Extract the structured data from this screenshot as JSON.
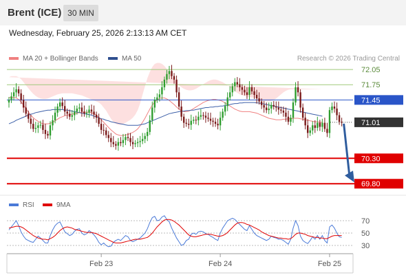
{
  "header": {
    "title": "Brent (ICE)",
    "timeframe": "30 MIN"
  },
  "datetime": "Wednesday, February 25, 2026 2:13:13 AM CET",
  "legend": {
    "ma20": "MA 20 + Bollinger Bands",
    "ma50": "MA 50",
    "credit": "Research © 2026 Trading Central"
  },
  "rsi_legend": {
    "rsi": "RSI",
    "ma9": "9MA"
  },
  "colors": {
    "candle_up": "#2e9d2e",
    "candle_down": "#7a1a1a",
    "bollinger_fill": "#fde0e0",
    "ma20": "#f08080",
    "ma50": "#3c5fa8",
    "support": "#e00000",
    "resistance": "#9fc97a",
    "pivot": "#2a55c8",
    "current": "#333333",
    "arrow": "#2f5d9e",
    "rsi": "#4a7ad8",
    "rsi_ma": "#e00000"
  },
  "chart_data": [
    {
      "type": "candlestick",
      "title": "Brent (ICE)",
      "timeframe": "30 MIN",
      "ylim": [
        69.6,
        72.2
      ],
      "x_tick_labels": [
        "Feb 23",
        "Feb 24",
        "Feb 25"
      ],
      "series": [
        {
          "name": "MA 20 + Bollinger Bands"
        },
        {
          "name": "MA 50"
        }
      ],
      "price_levels": [
        {
          "label": "72.05",
          "value": 72.05,
          "kind": "resistance"
        },
        {
          "label": "71.75",
          "value": 71.75,
          "kind": "resistance"
        },
        {
          "label": "71.45",
          "value": 71.45,
          "kind": "pivot"
        },
        {
          "label": "71.01",
          "value": 71.01,
          "kind": "current"
        },
        {
          "label": "70.30",
          "value": 70.3,
          "kind": "support"
        },
        {
          "label": "69.80",
          "value": 69.8,
          "kind": "support"
        }
      ],
      "close": [
        71.45,
        71.52,
        71.6,
        71.66,
        71.58,
        71.45,
        71.3,
        71.18,
        71.08,
        70.98,
        70.88,
        70.9,
        70.95,
        70.96,
        70.86,
        70.78,
        70.75,
        70.95,
        71.05,
        71.2,
        71.32,
        71.4,
        71.33,
        71.22,
        71.18,
        71.12,
        71.15,
        71.22,
        71.28,
        71.3,
        71.22,
        71.18,
        71.2,
        71.26,
        71.22,
        71.16,
        71.1,
        70.98,
        70.86,
        70.85,
        70.76,
        70.7,
        70.62,
        70.58,
        70.55,
        70.62,
        70.6,
        70.66,
        70.72,
        70.7,
        70.62,
        70.58,
        70.6,
        70.62,
        70.64,
        70.68,
        70.74,
        70.82,
        71.05,
        71.3,
        71.45,
        71.5,
        71.56,
        71.7,
        71.85,
        71.96,
        72.02,
        71.92,
        71.85,
        71.6,
        71.32,
        71.12,
        71.0,
        70.98,
        70.96,
        71.04,
        71.06,
        71.05,
        71.12,
        71.15,
        71.14,
        71.1,
        71.08,
        71.04,
        71.02,
        70.98,
        70.95,
        71.1,
        71.22,
        71.33,
        71.5,
        71.6,
        71.72,
        71.8,
        71.76,
        71.7,
        71.65,
        71.6,
        71.55,
        71.7,
        71.62,
        71.55,
        71.48,
        71.42,
        71.35,
        71.3,
        71.25,
        71.28,
        71.35,
        71.32,
        71.3,
        71.26,
        71.24,
        71.2,
        71.12,
        71.02,
        71.1,
        71.4,
        71.7,
        71.6,
        71.3,
        71.1,
        70.95,
        70.8,
        70.85,
        70.95,
        70.9,
        71.0,
        70.92,
        71.0,
        70.88,
        70.8,
        71.25,
        71.32,
        71.28,
        71.15,
        71.02,
        71.01
      ],
      "ma20": [
        71.5,
        71.5,
        71.5,
        71.49,
        71.46,
        71.41,
        71.35,
        71.28,
        71.21,
        71.15,
        71.1,
        71.06,
        71.03,
        71.0,
        70.98,
        70.98,
        70.98,
        70.99,
        71.01,
        71.04,
        71.07,
        71.1,
        71.12,
        71.14,
        71.15,
        71.16,
        71.17,
        71.18,
        71.19,
        71.2,
        71.21,
        71.21,
        71.21,
        71.21,
        71.2,
        71.18,
        71.15,
        71.11,
        71.06,
        71.01,
        70.96,
        70.91,
        70.86,
        70.82,
        70.78,
        70.76,
        70.75,
        70.75,
        70.76,
        70.77,
        70.79,
        70.81,
        70.84,
        70.88,
        70.94,
        71.01,
        71.09,
        71.18,
        71.27,
        71.35,
        71.41,
        71.45,
        71.48,
        71.49,
        71.49,
        71.47,
        71.44,
        71.4,
        71.36,
        71.31,
        71.27,
        71.24,
        71.22,
        71.22,
        71.23,
        71.25,
        71.28,
        71.31,
        71.34,
        71.37,
        71.4,
        71.42,
        71.44,
        71.45,
        71.46,
        71.46,
        71.45,
        71.44,
        71.42,
        71.39,
        71.36,
        71.33,
        71.3,
        71.27,
        71.25,
        71.23,
        71.22,
        71.22,
        71.22,
        71.22,
        71.21,
        71.2,
        71.19,
        71.17,
        71.15,
        71.13,
        71.11,
        71.09,
        71.08,
        71.07,
        71.06,
        71.06,
        71.06,
        71.07,
        71.07,
        71.08,
        71.08,
        71.09,
        71.09,
        71.09,
        71.08,
        71.07,
        71.06,
        71.05,
        71.04,
        71.03,
        71.02,
        71.02,
        71.01,
        71.01
      ],
      "bb_upper": [
        71.9,
        71.92,
        71.92,
        71.92,
        71.9,
        71.86,
        71.8,
        71.74,
        71.68,
        71.62,
        71.57,
        71.53,
        71.5,
        71.48,
        71.47,
        71.47,
        71.48,
        71.5,
        71.52,
        71.54,
        71.56,
        71.57,
        71.58,
        71.58,
        71.58,
        71.58,
        71.58,
        71.57,
        71.56,
        71.55,
        71.54,
        71.52,
        71.5,
        71.48,
        71.46,
        71.44,
        71.42,
        71.4,
        71.36,
        71.3,
        71.24,
        71.16,
        71.08,
        71.02,
        70.98,
        70.96,
        70.96,
        70.98,
        71.0,
        71.03,
        71.06,
        71.1,
        71.16,
        71.25,
        71.38,
        71.55,
        71.72,
        71.88,
        72.0,
        72.1,
        72.16,
        72.18,
        72.18,
        72.16,
        72.12,
        72.06,
        71.99,
        71.92,
        71.86,
        71.8,
        71.74,
        71.7,
        71.67,
        71.65,
        71.64,
        71.64,
        71.65,
        71.67,
        71.7,
        71.73,
        71.76,
        71.79,
        71.82,
        71.84,
        71.85,
        71.85,
        71.84,
        71.82,
        71.8,
        71.77,
        71.74,
        71.7,
        71.66,
        71.62,
        71.59,
        71.56,
        71.54,
        71.53,
        71.52,
        71.51,
        71.5,
        71.49,
        71.48,
        71.46,
        71.44,
        71.43,
        71.42,
        71.42,
        71.43,
        71.45,
        71.48,
        71.52,
        71.56,
        71.6,
        71.63,
        71.65,
        71.66,
        71.66,
        71.66,
        71.66,
        71.66,
        71.66,
        71.66,
        71.66,
        71.66,
        71.66,
        71.66,
        71.66,
        71.66,
        71.66
      ],
      "bb_lower": [
        71.1,
        71.08,
        71.08,
        71.06,
        71.02,
        70.96,
        70.9,
        70.82,
        70.74,
        70.68,
        70.63,
        70.59,
        70.56,
        70.53,
        70.52,
        70.51,
        70.51,
        70.52,
        70.54,
        70.56,
        70.58,
        70.62,
        70.66,
        70.7,
        70.72,
        70.74,
        70.76,
        70.78,
        70.8,
        70.82,
        70.84,
        70.86,
        70.88,
        70.9,
        70.91,
        70.9,
        70.88,
        70.82,
        70.74,
        70.64,
        70.55,
        70.48,
        70.42,
        70.38,
        70.35,
        70.34,
        70.34,
        70.34,
        70.34,
        70.34,
        70.34,
        70.33,
        70.33,
        70.32,
        70.3,
        70.28,
        70.26,
        70.24,
        70.22,
        70.21,
        70.22,
        70.25,
        70.3,
        70.36,
        70.43,
        70.5,
        70.57,
        70.63,
        70.68,
        70.72,
        70.76,
        70.79,
        70.82,
        70.84,
        70.86,
        70.88,
        70.9,
        70.92,
        70.94,
        70.96,
        70.98,
        71.0,
        71.02,
        71.04,
        71.05,
        71.06,
        71.06,
        71.06,
        71.05,
        71.03,
        71.0,
        70.96,
        70.92,
        70.88,
        70.85,
        70.83,
        70.82,
        70.82,
        70.83,
        70.84,
        70.85,
        70.85,
        70.84,
        70.82,
        70.8,
        70.76,
        70.72,
        70.68,
        70.64,
        70.6,
        70.56,
        70.52,
        70.48,
        70.45,
        70.43,
        70.42,
        70.42,
        70.42,
        70.42,
        70.42,
        70.42,
        70.42,
        70.42,
        70.42,
        70.42,
        70.42,
        70.42,
        70.42,
        70.42,
        70.42
      ],
      "ma50": [
        70.98,
        71.0,
        71.02,
        71.05,
        71.07,
        71.09,
        71.11,
        71.13,
        71.15,
        71.17,
        71.18,
        71.2,
        71.21,
        71.22,
        71.23,
        71.24,
        71.25,
        71.25,
        71.26,
        71.26,
        71.26,
        71.26,
        71.26,
        71.25,
        71.25,
        71.24,
        71.23,
        71.22,
        71.21,
        71.2,
        71.19,
        71.18,
        71.17,
        71.16,
        71.15,
        71.13,
        71.12,
        71.1,
        71.08,
        71.07,
        71.05,
        71.04,
        71.02,
        71.01,
        71.0,
        70.99,
        70.98,
        70.97,
        70.96,
        70.95,
        70.95,
        70.95,
        70.95,
        70.95,
        70.96,
        70.97,
        70.98,
        71.0,
        71.02,
        71.04,
        71.06,
        71.08,
        71.1,
        71.12,
        71.14,
        71.16,
        71.18,
        71.19,
        71.2,
        71.21,
        71.22,
        71.23,
        71.23,
        71.24,
        71.24,
        71.25,
        71.25,
        71.26,
        71.27,
        71.28,
        71.29,
        71.3,
        71.3,
        71.31,
        71.31,
        71.32,
        71.32,
        71.33,
        71.33,
        71.34,
        71.35,
        71.36,
        71.37,
        71.38,
        71.38,
        71.39,
        71.39,
        71.4,
        71.4,
        71.4,
        71.4,
        71.4,
        71.39,
        71.39,
        71.38,
        71.37,
        71.36,
        71.35,
        71.34,
        71.33,
        71.32,
        71.31,
        71.3,
        71.29,
        71.28,
        71.27,
        71.26,
        71.25,
        71.24,
        71.23,
        71.22,
        71.21,
        71.2,
        71.19,
        71.18,
        71.17,
        71.16,
        71.15,
        71.14,
        71.13
      ]
    },
    {
      "type": "line",
      "title": "RSI",
      "ylim": [
        20,
        80
      ],
      "y_tick_labels": [
        "70",
        "50",
        "30"
      ],
      "series": [
        {
          "name": "RSI",
          "values": [
            55,
            60,
            65,
            70,
            62,
            52,
            45,
            40,
            38,
            36,
            35,
            40,
            45,
            42,
            38,
            34,
            34,
            46,
            55,
            62,
            66,
            68,
            60,
            52,
            49,
            46,
            48,
            53,
            56,
            57,
            50,
            47,
            49,
            54,
            51,
            47,
            42,
            35,
            31,
            34,
            30,
            28,
            29,
            35,
            38,
            40,
            38,
            42,
            46,
            44,
            38,
            36,
            38,
            40,
            42,
            46,
            50,
            57,
            67,
            75,
            77,
            70,
            71,
            76,
            78,
            72,
            68,
            58,
            50,
            42,
            36,
            30,
            32,
            38,
            40,
            48,
            50,
            48,
            52,
            53,
            52,
            49,
            48,
            45,
            43,
            40,
            38,
            50,
            58,
            64,
            70,
            72,
            74,
            72,
            68,
            64,
            60,
            56,
            54,
            62,
            56,
            50,
            46,
            44,
            42,
            40,
            38,
            40,
            45,
            43,
            42,
            40,
            40,
            38,
            35,
            32,
            40,
            58,
            70,
            62,
            45,
            38,
            35,
            33,
            38,
            44,
            40,
            46,
            40,
            46,
            38,
            34,
            60,
            63,
            58,
            50,
            44,
            43
          ]
        },
        {
          "name": "9MA",
          "values": [
            58,
            59,
            60,
            61,
            61,
            60,
            58,
            55,
            52,
            49,
            46,
            44,
            42,
            41,
            40,
            40,
            39,
            41,
            43,
            46,
            50,
            54,
            57,
            59,
            60,
            59,
            58,
            56,
            55,
            54,
            53,
            52,
            51,
            51,
            51,
            50,
            49,
            47,
            45,
            43,
            41,
            39,
            37,
            35,
            34,
            34,
            34,
            35,
            36,
            37,
            38,
            39,
            40,
            40,
            40,
            41,
            42,
            43,
            46,
            50,
            55,
            60,
            64,
            68,
            71,
            72,
            72,
            71,
            69,
            66,
            63,
            59,
            55,
            51,
            47,
            45,
            44,
            44,
            45,
            46,
            47,
            48,
            48,
            48,
            47,
            46,
            45,
            45,
            46,
            48,
            51,
            55,
            59,
            63,
            66,
            67,
            67,
            66,
            64,
            63,
            61,
            59,
            57,
            55,
            52,
            50,
            48,
            46,
            45,
            44,
            43,
            42,
            42,
            41,
            41,
            40,
            41,
            44,
            48,
            50,
            50,
            49,
            48,
            46,
            45,
            44,
            43,
            43,
            42,
            42,
            41,
            41,
            43,
            45,
            46,
            46,
            46,
            46
          ]
        }
      ]
    }
  ]
}
